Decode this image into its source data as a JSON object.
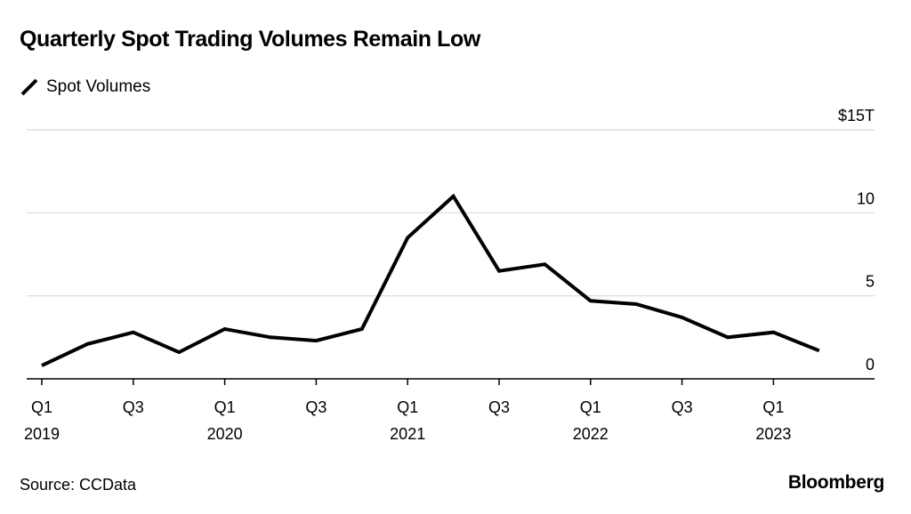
{
  "chart_data": {
    "type": "line",
    "title": "Quarterly Spot Trading Volumes Remain Low",
    "ylim": [
      0,
      15
    ],
    "y_ticks": [
      {
        "value": 15,
        "label": "$15T"
      },
      {
        "value": 10,
        "label": "10"
      },
      {
        "value": 5,
        "label": "5"
      },
      {
        "value": 0,
        "label": "0"
      }
    ],
    "x_ticks": [
      {
        "index": 0,
        "quarter": "Q1",
        "year": "2019"
      },
      {
        "index": 2,
        "quarter": "Q3",
        "year": ""
      },
      {
        "index": 4,
        "quarter": "Q1",
        "year": "2020"
      },
      {
        "index": 6,
        "quarter": "Q3",
        "year": ""
      },
      {
        "index": 8,
        "quarter": "Q1",
        "year": "2021"
      },
      {
        "index": 10,
        "quarter": "Q3",
        "year": ""
      },
      {
        "index": 12,
        "quarter": "Q1",
        "year": "2022"
      },
      {
        "index": 14,
        "quarter": "Q3",
        "year": ""
      },
      {
        "index": 16,
        "quarter": "Q1",
        "year": "2023"
      }
    ],
    "series": [
      {
        "name": "Spot Volumes",
        "color": "#000000",
        "x": [
          "2019 Q1",
          "2019 Q2",
          "2019 Q3",
          "2019 Q4",
          "2020 Q1",
          "2020 Q2",
          "2020 Q3",
          "2020 Q4",
          "2021 Q1",
          "2021 Q2",
          "2021 Q3",
          "2021 Q4",
          "2022 Q1",
          "2022 Q2",
          "2022 Q3",
          "2022 Q4",
          "2023 Q1",
          "2023 Q2"
        ],
        "values": [
          0.8,
          2.1,
          2.8,
          1.6,
          3.0,
          2.5,
          2.3,
          3.0,
          8.5,
          11.0,
          6.5,
          6.9,
          4.7,
          4.5,
          3.7,
          2.5,
          2.8,
          1.7
        ]
      }
    ],
    "grid": true,
    "legend_position": "top-left"
  },
  "source": "Source: CCData",
  "brand": "Bloomberg"
}
